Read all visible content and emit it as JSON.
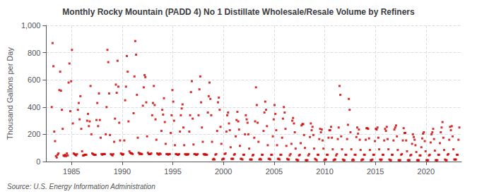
{
  "chart_data": {
    "type": "scatter",
    "title": "Monthly Rocky Mountain (PADD 4) No 1 Distillate Wholesale/Resale Volume by Refiners",
    "ylabel": "Thousand Gallons per Day",
    "annotation": "Source: U.S. Energy Information Administration",
    "color": "#cc0000",
    "marker": "square",
    "grid": true,
    "xlim": [
      1982.5,
      2023.5
    ],
    "xticks": [
      1985,
      1990,
      1995,
      2000,
      2005,
      2010,
      2015,
      2020
    ],
    "ylim": [
      0,
      1000
    ],
    "yticks": [
      0,
      200,
      400,
      600,
      800,
      {
        "value": 1000,
        "label": "1,000"
      }
    ],
    "x": [
      1983.0416666666667,
      1983.125,
      1983.2083333333333,
      1983.2916666666667,
      1983.375,
      1983.4583333333333,
      1983.5416666666667,
      1983.625,
      1983.7083333333333,
      1983.7916666666667,
      1983.875,
      1983.9583333333333,
      1984.0416666666667,
      1984.125,
      1984.2083333333333,
      1984.2916666666667,
      1984.375,
      1984.4583333333333,
      1984.5416666666667,
      1984.625,
      1984.7083333333333,
      1984.7916666666667,
      1984.875,
      1984.9583333333333,
      1985.0416666666667,
      1985.125,
      1985.2083333333333,
      1985.2916666666667,
      1985.375,
      1985.4583333333333,
      1985.5416666666667,
      1985.625,
      1985.7083333333333,
      1985.7916666666667,
      1985.875,
      1985.9583333333333,
      1986.0416666666667,
      1986.125,
      1986.2083333333333,
      1986.2916666666667,
      1986.375,
      1986.4583333333333,
      1986.5416666666667,
      1986.625,
      1986.7083333333333,
      1986.7916666666667,
      1986.875,
      1986.9583333333333,
      1987.0416666666667,
      1987.125,
      1987.2083333333333,
      1987.2916666666667,
      1987.375,
      1987.4583333333333,
      1987.5416666666667,
      1987.625,
      1987.7083333333333,
      1987.7916666666667,
      1987.875,
      1987.9583333333333,
      1988.0416666666667,
      1988.125,
      1988.2083333333333,
      1988.2916666666667,
      1988.375,
      1988.4583333333333,
      1988.5416666666667,
      1988.625,
      1988.7083333333333,
      1988.7916666666667,
      1988.875,
      1988.9583333333333,
      1989.0416666666667,
      1989.125,
      1989.2083333333333,
      1989.2916666666667,
      1989.375,
      1989.4583333333333,
      1989.5416666666667,
      1989.625,
      1989.7083333333333,
      1989.7916666666667,
      1989.875,
      1989.9583333333333,
      1990.0416666666667,
      1990.125,
      1990.2083333333333,
      1990.2916666666667,
      1990.375,
      1990.4583333333333,
      1990.5416666666667,
      1990.625,
      1990.7083333333333,
      1990.7916666666667,
      1990.875,
      1990.9583333333333,
      1991.0416666666667,
      1991.125,
      1991.2083333333333,
      1991.2916666666667,
      1991.375,
      1991.4583333333333,
      1991.5416666666667,
      1991.625,
      1991.7083333333333,
      1991.7916666666667,
      1991.875,
      1991.9583333333333,
      1992.0416666666667,
      1992.125,
      1992.2083333333333,
      1992.2916666666667,
      1992.375,
      1992.4583333333333,
      1992.5416666666667,
      1992.625,
      1992.7083333333333,
      1992.7916666666667,
      1992.875,
      1992.9583333333333,
      1993.0416666666667,
      1993.125,
      1993.2083333333333,
      1993.2916666666667,
      1993.375,
      1993.4583333333333,
      1993.5416666666667,
      1993.625,
      1993.7083333333333,
      1993.7916666666667,
      1993.875,
      1993.9583333333333,
      1994.0416666666667,
      1994.125,
      1994.2083333333333,
      1994.2916666666667,
      1994.375,
      1994.4583333333333,
      1994.5416666666667,
      1994.625,
      1994.7083333333333,
      1994.7916666666667,
      1994.875,
      1994.9583333333333,
      1995.0416666666667,
      1995.125,
      1995.2083333333333,
      1995.2916666666667,
      1995.375,
      1995.4583333333333,
      1995.5416666666667,
      1995.625,
      1995.7083333333333,
      1995.7916666666667,
      1995.875,
      1995.9583333333333,
      1996.0416666666667,
      1996.125,
      1996.2083333333333,
      1996.2916666666667,
      1996.375,
      1996.4583333333333,
      1996.5416666666667,
      1996.625,
      1996.7083333333333,
      1996.7916666666667,
      1996.875,
      1996.9583333333333,
      1997.0416666666667,
      1997.125,
      1997.2083333333333,
      1997.2916666666667,
      1997.375,
      1997.4583333333333,
      1997.5416666666667,
      1997.625,
      1997.7083333333333,
      1997.7916666666667,
      1997.875,
      1997.9583333333333,
      1998.0416666666667,
      1998.125,
      1998.2083333333333,
      1998.2916666666667,
      1998.375,
      1998.4583333333333,
      1998.5416666666667,
      1998.625,
      1998.7083333333333,
      1998.7916666666667,
      1998.875,
      1998.9583333333333,
      1999.0416666666667,
      1999.125,
      1999.2083333333333,
      1999.2916666666667,
      1999.375,
      1999.4583333333333,
      1999.5416666666667,
      1999.625,
      1999.7083333333333,
      1999.7916666666667,
      1999.875,
      1999.9583333333333,
      2000.0416666666667,
      2000.125,
      2000.2083333333333,
      2000.2916666666667,
      2000.375,
      2000.4583333333333,
      2000.5416666666667,
      2000.625,
      2000.7083333333333,
      2000.7916666666667,
      2000.875,
      2000.9583333333333,
      2001.0416666666667,
      2001.125,
      2001.2083333333333,
      2001.2916666666667,
      2001.375,
      2001.4583333333333,
      2001.5416666666667,
      2001.625,
      2001.7083333333333,
      2001.7916666666667,
      2001.875,
      2001.9583333333333,
      2002.0416666666667,
      2002.125,
      2002.2083333333333,
      2002.2916666666667,
      2002.375,
      2002.4583333333333,
      2002.5416666666667,
      2002.625,
      2002.7083333333333,
      2002.7916666666667,
      2002.875,
      2002.9583333333333,
      2003.0416666666667,
      2003.125,
      2003.2083333333333,
      2003.2916666666667,
      2003.375,
      2003.4583333333333,
      2003.5416666666667,
      2003.625,
      2003.7083333333333,
      2003.7916666666667,
      2003.875,
      2003.9583333333333,
      2004.0416666666667,
      2004.125,
      2004.2083333333333,
      2004.2916666666667,
      2004.375,
      2004.4583333333333,
      2004.5416666666667,
      2004.625,
      2004.7083333333333,
      2004.7916666666667,
      2004.875,
      2004.9583333333333,
      2005.0416666666667,
      2005.125,
      2005.2083333333333,
      2005.2916666666667,
      2005.375,
      2005.4583333333333,
      2005.5416666666667,
      2005.625,
      2005.7083333333333,
      2005.7916666666667,
      2005.875,
      2005.9583333333333,
      2006.0416666666667,
      2006.125,
      2006.2083333333333,
      2006.2916666666667,
      2006.375,
      2006.4583333333333,
      2006.5416666666667,
      2006.625,
      2006.7083333333333,
      2006.7916666666667,
      2006.875,
      2006.9583333333333,
      2007.0416666666667,
      2007.125,
      2007.2083333333333,
      2007.2916666666667,
      2007.375,
      2007.4583333333333,
      2007.5416666666667,
      2007.625,
      2007.7083333333333,
      2007.7916666666667,
      2007.875,
      2007.9583333333333,
      2008.0416666666667,
      2008.125,
      2008.2083333333333,
      2008.2916666666667,
      2008.375,
      2008.4583333333333,
      2008.5416666666667,
      2008.625,
      2008.7083333333333,
      2008.7916666666667,
      2008.875,
      2008.9583333333333,
      2009.0416666666667,
      2009.125,
      2009.2083333333333,
      2009.2916666666667,
      2009.375,
      2009.4583333333333,
      2009.5416666666667,
      2009.625,
      2009.7083333333333,
      2009.7916666666667,
      2009.875,
      2009.9583333333333,
      2010.0416666666667,
      2010.125,
      2010.2083333333333,
      2010.2916666666667,
      2010.375,
      2010.4583333333333,
      2010.5416666666667,
      2010.625,
      2010.7083333333333,
      2010.7916666666667,
      2010.875,
      2010.9583333333333,
      2011.0416666666667,
      2011.125,
      2011.2083333333333,
      2011.2916666666667,
      2011.375,
      2011.4583333333333,
      2011.5416666666667,
      2011.625,
      2011.7083333333333,
      2011.7916666666667,
      2011.875,
      2011.9583333333333,
      2012.0416666666667,
      2012.125,
      2012.2083333333333,
      2012.2916666666667,
      2012.375,
      2012.4583333333333,
      2012.5416666666667,
      2012.625,
      2012.7083333333333,
      2012.7916666666667,
      2012.875,
      2012.9583333333333,
      2013.0416666666667,
      2013.125,
      2013.2083333333333,
      2013.2916666666667,
      2013.375,
      2013.4583333333333,
      2013.5416666666667,
      2013.625,
      2013.7083333333333,
      2013.7916666666667,
      2013.875,
      2013.9583333333333,
      2014.0416666666667,
      2014.125,
      2014.2083333333333,
      2014.2916666666667,
      2014.375,
      2014.4583333333333,
      2014.5416666666667,
      2014.625,
      2014.7083333333333,
      2014.7916666666667,
      2014.875,
      2014.9583333333333,
      2015.0416666666667,
      2015.125,
      2015.2083333333333,
      2015.2916666666667,
      2015.375,
      2015.4583333333333,
      2015.5416666666667,
      2015.625,
      2015.7083333333333,
      2015.7916666666667,
      2015.875,
      2015.9583333333333,
      2016.0416666666667,
      2016.125,
      2016.2083333333333,
      2016.2916666666667,
      2016.375,
      2016.4583333333333,
      2016.5416666666667,
      2016.625,
      2016.7083333333333,
      2016.7916666666667,
      2016.875,
      2016.9583333333333,
      2017.0416666666667,
      2017.125,
      2017.2083333333333,
      2017.2916666666667,
      2017.375,
      2017.4583333333333,
      2017.5416666666667,
      2017.625,
      2017.7083333333333,
      2017.7916666666667,
      2017.875,
      2017.9583333333333,
      2018.0416666666667,
      2018.125,
      2018.2083333333333,
      2018.2916666666667,
      2018.375,
      2018.4583333333333,
      2018.5416666666667,
      2018.625,
      2018.7083333333333,
      2018.7916666666667,
      2018.875,
      2018.9583333333333,
      2019.0416666666667,
      2019.125,
      2019.2083333333333,
      2019.2916666666667,
      2019.375,
      2019.4583333333333,
      2019.5416666666667,
      2019.625,
      2019.7083333333333,
      2019.7916666666667,
      2019.875,
      2019.9583333333333,
      2020.0416666666667,
      2020.125,
      2020.2083333333333,
      2020.2916666666667,
      2020.375,
      2020.4583333333333,
      2020.5416666666667,
      2020.625,
      2020.7083333333333,
      2020.7916666666667,
      2020.875,
      2020.9583333333333,
      2021.0416666666667,
      2021.125,
      2021.2083333333333,
      2021.2916666666667,
      2021.375,
      2021.4583333333333,
      2021.5416666666667,
      2021.625,
      2021.7083333333333,
      2021.7916666666667,
      2021.875,
      2021.9583333333333,
      2022.0416666666667,
      2022.125,
      2022.2083333333333,
      2022.2916666666667,
      2022.375,
      2022.4583333333333,
      2022.5416666666667,
      2022.625,
      2022.7083333333333,
      2022.7916666666667,
      2022.875,
      2022.9583333333333,
      2023.0416666666667,
      2023.125,
      2023.2083333333333,
      2023.2916666666667
    ],
    "values": [
      400,
      870,
      700,
      220,
      150,
      40,
      30,
      50,
      60,
      525,
      660,
      520,
      380,
      240,
      45,
      40,
      50,
      40,
      60,
      45,
      580,
      720,
      370,
      590,
      820,
      280,
      60,
      55,
      50,
      45,
      55,
      380,
      430,
      310,
      480,
      240,
      75,
      45,
      45,
      50,
      50,
      50,
      300,
      350,
      260,
      295,
      555,
      200,
      60,
      55,
      50,
      50,
      50,
      305,
      430,
      260,
      500,
      305,
      175,
      55,
      50,
      55,
      55,
      55,
      200,
      400,
      820,
      730,
      500,
      195,
      55,
      50,
      45,
      55,
      145,
      315,
      565,
      505,
      740,
      550,
      285,
      155,
      60,
      55,
      50,
      55,
      155,
      450,
      550,
      775,
      660,
      295,
      75,
      65,
      60,
      60,
      55,
      355,
      625,
      885,
      785,
      490,
      175,
      65,
      55,
      60,
      55,
      55,
      410,
      545,
      635,
      620,
      435,
      185,
      65,
      55,
      55,
      55,
      60,
      340,
      430,
      555,
      415,
      310,
      160,
      60,
      55,
      50,
      60,
      55,
      225,
      380,
      345,
      465,
      290,
      130,
      55,
      55,
      50,
      55,
      55,
      210,
      340,
      525,
      440,
      300,
      120,
      55,
      55,
      50,
      50,
      55,
      220,
      340,
      390,
      420,
      250,
      120,
      55,
      50,
      55,
      50,
      55,
      220,
      340,
      510,
      590,
      315,
      125,
      55,
      55,
      50,
      50,
      55,
      340,
      530,
      625,
      435,
      250,
      145,
      55,
      50,
      55,
      50,
      50,
      360,
      480,
      580,
      460,
      340,
      145,
      15,
      20,
      15,
      50,
      55,
      225,
      435,
      470,
      380,
      255,
      130,
      15,
      20,
      20,
      55,
      60,
      220,
      340,
      360,
      280,
      230,
      105,
      20,
      20,
      20,
      50,
      55,
      185,
      305,
      365,
      295,
      235,
      115,
      20,
      20,
      15,
      50,
      50,
      200,
      340,
      310,
      285,
      200,
      95,
      15,
      15,
      15,
      45,
      50,
      175,
      295,
      545,
      415,
      285,
      145,
      15,
      20,
      15,
      50,
      50,
      225,
      360,
      440,
      380,
      260,
      120,
      20,
      20,
      15,
      50,
      50,
      185,
      310,
      415,
      350,
      230,
      120,
      20,
      20,
      15,
      50,
      50,
      175,
      315,
      400,
      360,
      240,
      115,
      20,
      15,
      15,
      45,
      55,
      130,
      300,
      320,
      280,
      215,
      95,
      15,
      10,
      10,
      45,
      50,
      135,
      265,
      275,
      275,
      195,
      100,
      10,
      10,
      10,
      45,
      55,
      180,
      280,
      230,
      255,
      195,
      95,
      20,
      15,
      10,
      50,
      50,
      165,
      240,
      215,
      235,
      155,
      95,
      10,
      15,
      15,
      50,
      50,
      175,
      230,
      230,
      255,
      175,
      90,
      10,
      15,
      15,
      45,
      55,
      165,
      250,
      555,
      490,
      185,
      90,
      15,
      10,
      10,
      50,
      50,
      165,
      270,
      460,
      380,
      215,
      90,
      10,
      15,
      10,
      50,
      50,
      180,
      250,
      205,
      235,
      160,
      85,
      10,
      15,
      15,
      50,
      50,
      160,
      245,
      245,
      240,
      170,
      85,
      10,
      10,
      15,
      50,
      50,
      150,
      240,
      235,
      250,
      175,
      90,
      15,
      10,
      15,
      50,
      50,
      155,
      240,
      225,
      255,
      165,
      90,
      15,
      10,
      10,
      50,
      50,
      155,
      235,
      250,
      265,
      185,
      85,
      10,
      10,
      10,
      50,
      55,
      155,
      245,
      210,
      210,
      155,
      75,
      10,
      10,
      10,
      45,
      50,
      130,
      200,
      180,
      160,
      120,
      70,
      10,
      10,
      10,
      45,
      45,
      105,
      170,
      205,
      215,
      150,
      75,
      10,
      10,
      10,
      45,
      50,
      140,
      200,
      215,
      240,
      165,
      80,
      10,
      10,
      10,
      50,
      50,
      135,
      215,
      250,
      290,
      175,
      85,
      15,
      10,
      10,
      50,
      55,
      160,
      255,
      230,
      260,
      185,
      90,
      15,
      15,
      15,
      50,
      50,
      160,
      250
    ]
  }
}
